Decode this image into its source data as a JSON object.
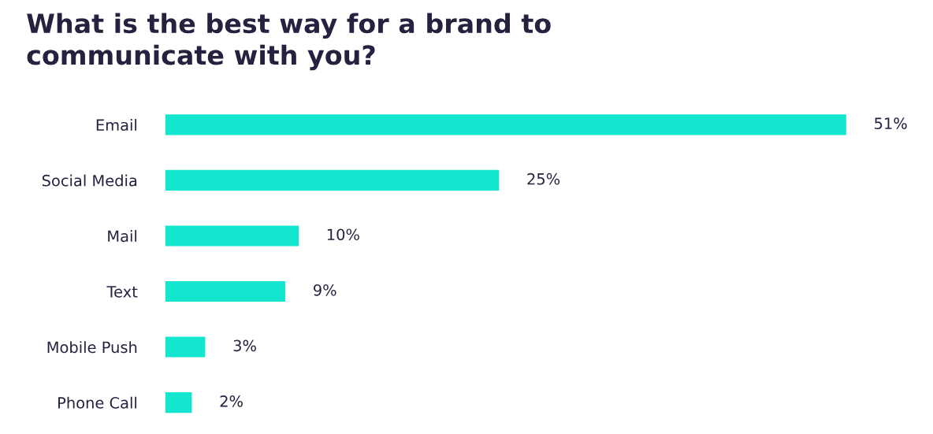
{
  "chart_data": {
    "type": "bar",
    "orientation": "horizontal",
    "title": "What is the best way for a brand to\ncommunicate with you?",
    "categories": [
      "Email",
      "Social Media",
      "Mail",
      "Text",
      "Mobile Push",
      "Phone Call"
    ],
    "values": [
      51,
      25,
      10,
      9,
      3,
      2
    ],
    "value_labels": [
      "51%",
      "25%",
      "10%",
      "9%",
      "3%",
      "2%"
    ],
    "color": "#13e5cf",
    "grid": false,
    "legend": false
  }
}
